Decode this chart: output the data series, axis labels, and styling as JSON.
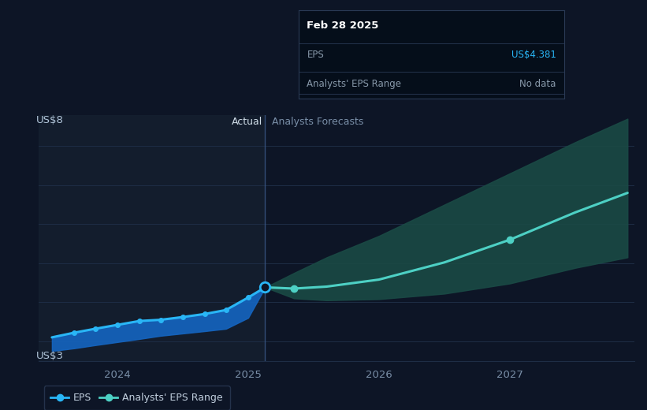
{
  "bg_color": "#0d1526",
  "plot_bg_color": "#0d1526",
  "grid_color": "#1e2d45",
  "divider_x": 2025.13,
  "highlight_bg_color": "#152030",
  "actual_label": "Actual",
  "forecast_label": "Analysts Forecasts",
  "ylabel_top": "US$8",
  "ylabel_bottom": "US$3",
  "ylim": [
    2.5,
    8.8
  ],
  "xlim": [
    2023.4,
    2027.95
  ],
  "xtick_labels": [
    "2024",
    "2025",
    "2026",
    "2027"
  ],
  "xtick_positions": [
    2024.0,
    2025.0,
    2026.0,
    2027.0
  ],
  "actual_x": [
    2023.5,
    2023.67,
    2023.83,
    2024.0,
    2024.17,
    2024.33,
    2024.5,
    2024.67,
    2024.83,
    2025.0,
    2025.13
  ],
  "actual_y": [
    3.1,
    3.22,
    3.32,
    3.42,
    3.52,
    3.55,
    3.62,
    3.7,
    3.8,
    4.12,
    4.381
  ],
  "actual_band_upper": [
    3.1,
    3.22,
    3.32,
    3.42,
    3.52,
    3.55,
    3.62,
    3.7,
    3.8,
    4.12,
    4.381
  ],
  "actual_band_lower": [
    2.75,
    2.82,
    2.9,
    2.98,
    3.06,
    3.14,
    3.2,
    3.26,
    3.32,
    3.6,
    4.381
  ],
  "forecast_x": [
    2025.13,
    2025.35,
    2025.6,
    2026.0,
    2026.5,
    2027.0,
    2027.5,
    2027.9
  ],
  "forecast_y": [
    4.381,
    4.35,
    4.4,
    4.58,
    5.02,
    5.6,
    6.3,
    6.8
  ],
  "forecast_band_upper": [
    4.381,
    4.75,
    5.15,
    5.7,
    6.5,
    7.3,
    8.1,
    8.7
  ],
  "forecast_band_lower": [
    4.381,
    4.1,
    4.05,
    4.08,
    4.22,
    4.48,
    4.88,
    5.15
  ],
  "eps_line_color_actual": "#29b6f6",
  "actual_band_color": "#1565c0",
  "forecast_line_color": "#4dd0c4",
  "forecast_band_color": "#1a4a45",
  "divider_color": "#3a5a8a",
  "tooltip_bg": "#050e1a",
  "tooltip_border": "#2a3a55",
  "tooltip_title": "Feb 28 2025",
  "tooltip_eps_label": "EPS",
  "tooltip_eps_value": "US$4.381",
  "tooltip_eps_color": "#29b6f6",
  "tooltip_range_label": "Analysts' EPS Range",
  "tooltip_range_value": "No data",
  "tooltip_range_color": "#8899aa",
  "legend_eps_label": "EPS",
  "legend_range_label": "Analysts' EPS Range",
  "marker_actual_last_color": "#0d1526"
}
